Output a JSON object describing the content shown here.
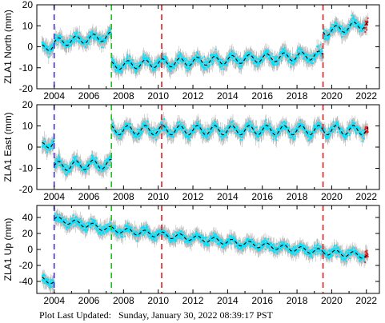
{
  "footer": {
    "label": "Plot Last Updated:",
    "timestamp": "Sunday, January 30, 2022 08:39:17 PST"
  },
  "colors": {
    "data_points": "#00e5ff",
    "error_bars": "#b8b8b8",
    "model": "#000000",
    "recent_points": "#e02020",
    "blue_break": "#4a2fd0",
    "green_break": "#22c022",
    "red_break": "#e02020"
  },
  "chart_data": [
    {
      "type": "scatter",
      "ylabel": "ZLA1 North (mm)",
      "xlim": [
        2003.0,
        2022.75
      ],
      "ylim": [
        -20,
        20
      ],
      "yticks": [
        -20,
        -10,
        0,
        10,
        20
      ],
      "xticks": [
        2004,
        2006,
        2008,
        2010,
        2012,
        2014,
        2016,
        2018,
        2020,
        2022
      ],
      "breaks": [
        {
          "year": 2004.0,
          "color": "blue"
        },
        {
          "year": 2007.3,
          "color": "green"
        },
        {
          "year": 2010.2,
          "color": "red"
        },
        {
          "year": 2019.5,
          "color": "red"
        }
      ],
      "trend_segments": [
        {
          "x": [
            2003.3,
            2004.0
          ],
          "y": [
            -1,
            1
          ]
        },
        {
          "x": [
            2004.0,
            2007.3
          ],
          "y": [
            2,
            5
          ]
        },
        {
          "x": [
            2007.3,
            2019.5
          ],
          "y": [
            -9,
            -4
          ]
        },
        {
          "x": [
            2019.5,
            2022.1
          ],
          "y": [
            7,
            11
          ]
        }
      ],
      "seasonal_amplitude": 2.0,
      "scatter_spread": 2.5
    },
    {
      "type": "scatter",
      "ylabel": "ZLA1 East (mm)",
      "xlim": [
        2003.0,
        2022.75
      ],
      "ylim": [
        -20,
        20
      ],
      "yticks": [
        -20,
        -10,
        0,
        10,
        20
      ],
      "xticks": [
        2004,
        2006,
        2008,
        2010,
        2012,
        2014,
        2016,
        2018,
        2020,
        2022
      ],
      "breaks": [
        {
          "year": 2004.0,
          "color": "blue"
        },
        {
          "year": 2007.3,
          "color": "green"
        },
        {
          "year": 2010.2,
          "color": "red"
        },
        {
          "year": 2019.5,
          "color": "red"
        }
      ],
      "trend_segments": [
        {
          "x": [
            2003.3,
            2004.0
          ],
          "y": [
            0,
            3
          ]
        },
        {
          "x": [
            2004.0,
            2007.3
          ],
          "y": [
            -9,
            -8
          ]
        },
        {
          "x": [
            2007.3,
            2019.5
          ],
          "y": [
            8,
            8
          ]
        },
        {
          "x": [
            2019.5,
            2022.1
          ],
          "y": [
            8,
            8
          ]
        }
      ],
      "seasonal_amplitude": 2.2,
      "scatter_spread": 2.5
    },
    {
      "type": "scatter",
      "ylabel": "ZLA1 Up (mm)",
      "xlim": [
        2003.0,
        2022.75
      ],
      "ylim": [
        -55,
        55
      ],
      "yticks": [
        -40,
        -20,
        0,
        20,
        40
      ],
      "xticks": [
        2004,
        2006,
        2008,
        2010,
        2012,
        2014,
        2016,
        2018,
        2020,
        2022
      ],
      "breaks": [
        {
          "year": 2004.0,
          "color": "blue"
        },
        {
          "year": 2007.3,
          "color": "green"
        },
        {
          "year": 2010.2,
          "color": "red"
        },
        {
          "year": 2019.5,
          "color": "red"
        }
      ],
      "trend_segments": [
        {
          "x": [
            2003.3,
            2004.0
          ],
          "y": [
            -38,
            -40
          ]
        },
        {
          "x": [
            2004.0,
            2007.3
          ],
          "y": [
            38,
            25
          ]
        },
        {
          "x": [
            2007.3,
            2019.5
          ],
          "y": [
            25,
            -3
          ]
        },
        {
          "x": [
            2019.5,
            2022.1
          ],
          "y": [
            -3,
            -8
          ]
        }
      ],
      "seasonal_amplitude": 3.5,
      "scatter_spread": 6
    }
  ]
}
